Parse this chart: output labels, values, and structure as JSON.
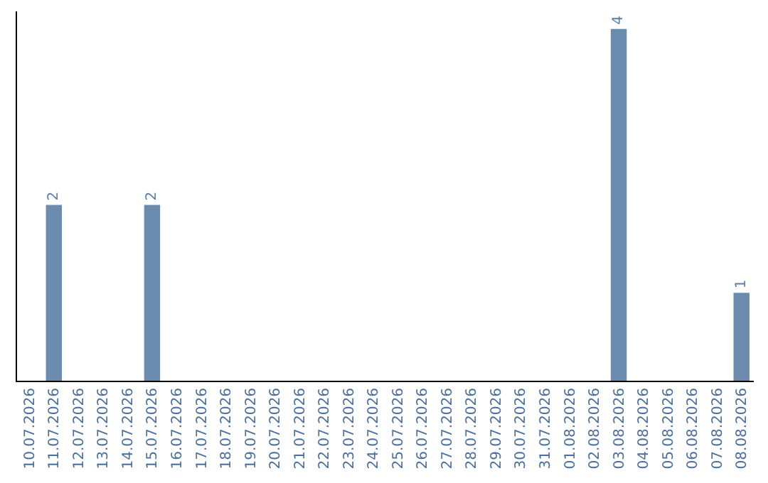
{
  "chart_data": {
    "type": "bar",
    "categories": [
      "10.07.2026",
      "11.07.2026",
      "12.07.2026",
      "13.07.2026",
      "14.07.2026",
      "15.07.2026",
      "16.07.2026",
      "17.07.2026",
      "18.07.2026",
      "19.07.2026",
      "20.07.2026",
      "21.07.2026",
      "22.07.2026",
      "23.07.2026",
      "24.07.2026",
      "25.07.2026",
      "26.07.2026",
      "27.07.2026",
      "28.07.2026",
      "29.07.2026",
      "30.07.2026",
      "31.07.2026",
      "01.08.2026",
      "02.08.2026",
      "03.08.2026",
      "04.08.2026",
      "05.08.2026",
      "06.08.2026",
      "07.08.2026",
      "08.08.2026"
    ],
    "values": [
      0,
      2,
      0,
      0,
      0,
      2,
      0,
      0,
      0,
      0,
      0,
      0,
      0,
      0,
      0,
      0,
      0,
      0,
      0,
      0,
      0,
      0,
      0,
      0,
      4,
      0,
      0,
      0,
      0,
      1
    ],
    "value_labels": [
      null,
      "2",
      null,
      null,
      null,
      "2",
      null,
      null,
      null,
      null,
      null,
      null,
      null,
      null,
      null,
      null,
      null,
      null,
      null,
      null,
      null,
      null,
      null,
      null,
      "4",
      null,
      null,
      null,
      null,
      "1"
    ],
    "color": "#6b8cae",
    "ylim": [
      0,
      4.2
    ],
    "tick_labels": "x",
    "legend": false
  }
}
